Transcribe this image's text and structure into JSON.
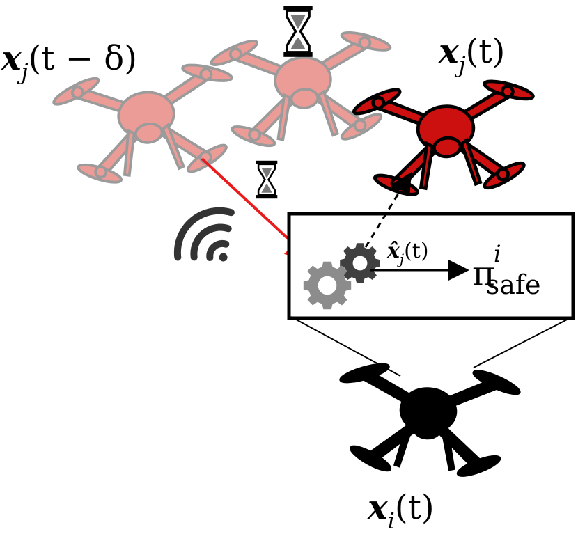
{
  "labels": {
    "xj_delayed": {
      "var": "x",
      "sub": "j",
      "arg": "(t − δ)"
    },
    "xj_now": {
      "var": "x",
      "sub": "j",
      "arg": "(t)"
    },
    "xhat_j": {
      "var": "x̂",
      "sub": "j",
      "arg": "(t)"
    },
    "pi_safe": {
      "symbol": "π",
      "sub": "safe",
      "sup": "i"
    },
    "xi_now": {
      "var": "x",
      "sub": "i",
      "arg": "(t)"
    }
  },
  "colors": {
    "drone_faded": "#e88b86",
    "drone_faded_stroke": "#8a8a8a",
    "drone_active": "#cc1010",
    "drone_self": "#000000",
    "comm_arrow": "#e81c1c",
    "gear_dark": "#404040",
    "gear_light": "#8c8c8c",
    "wifi": "#333333"
  },
  "icons": [
    "hourglass-icon",
    "wifi-icon",
    "gear-icon",
    "drone-icon"
  ]
}
